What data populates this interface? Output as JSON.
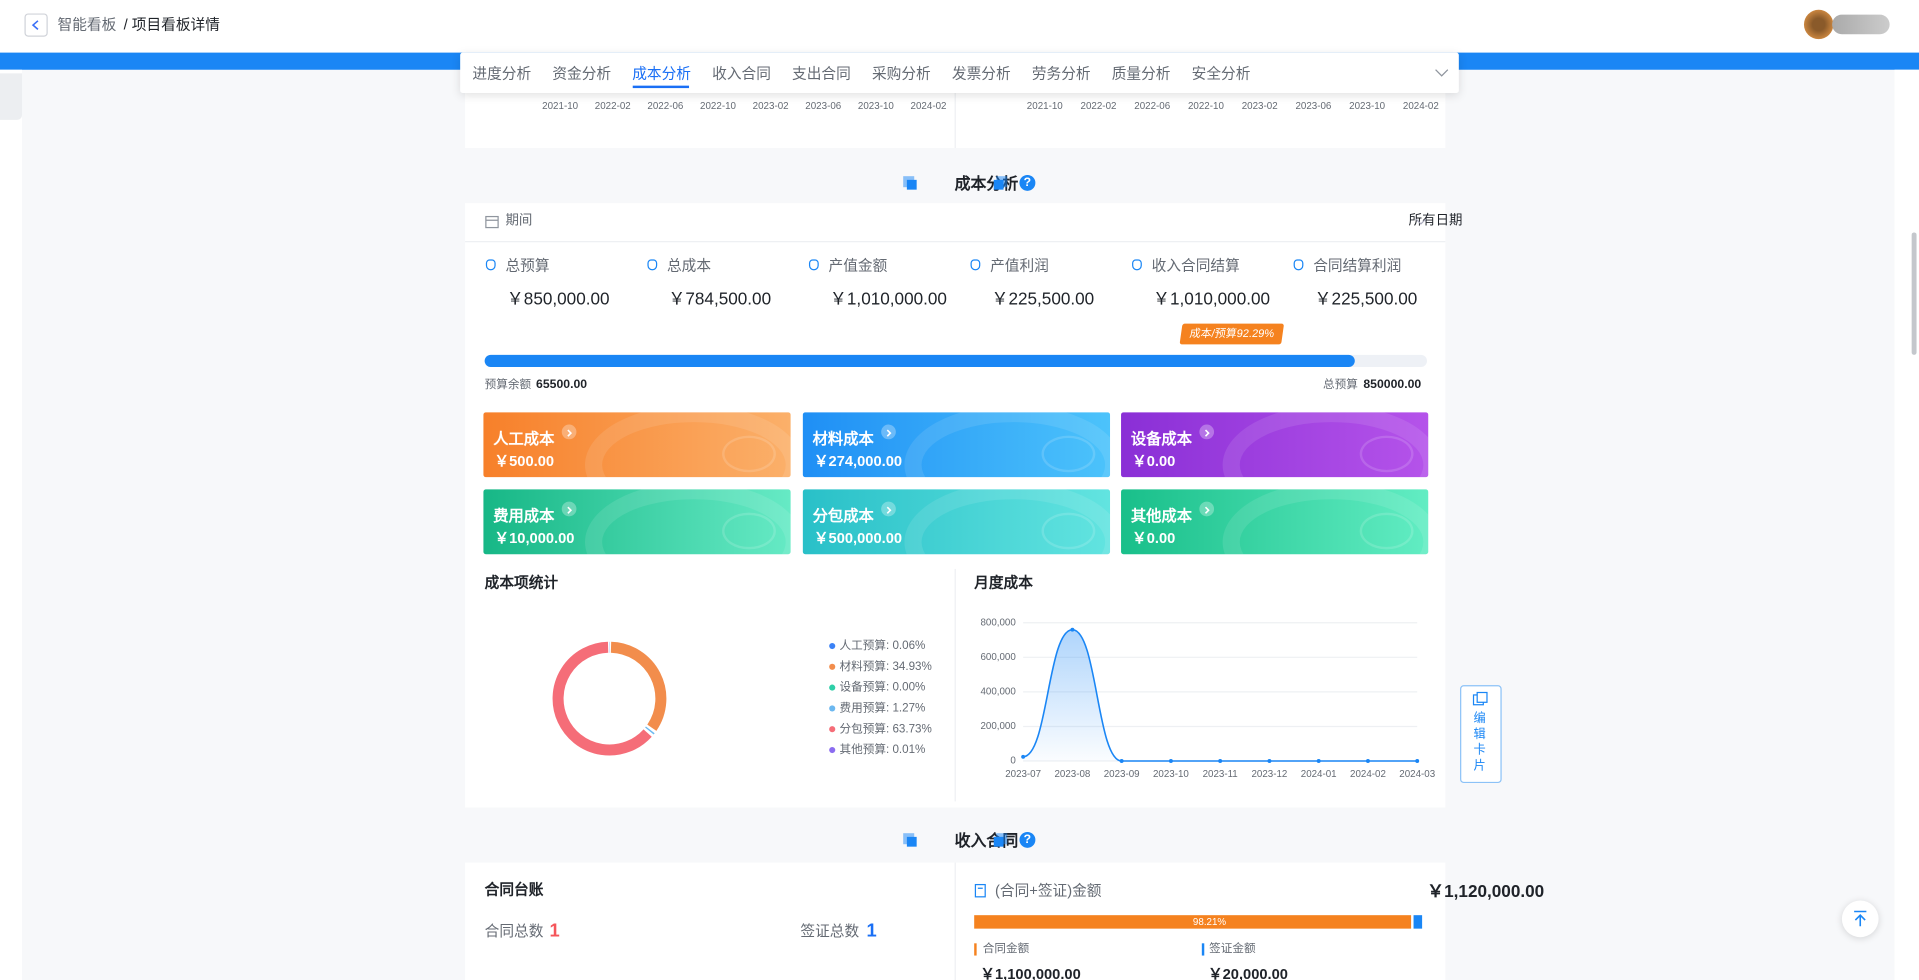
{
  "header": {
    "breadcrumb_parent": "智能看板",
    "breadcrumb_current": "/ 项目看板详情"
  },
  "tabs": {
    "items": [
      "进度分析",
      "资金分析",
      "成本分析",
      "收入合同",
      "支出合同",
      "采购分析",
      "发票分析",
      "劳务分析",
      "质量分析",
      "安全分析"
    ],
    "active": 2
  },
  "top_charts": {
    "left_xticks": [
      "2021-10",
      "2022-02",
      "2022-06",
      "2022-10",
      "2023-02",
      "2023-06",
      "2023-10",
      "2024-02"
    ],
    "right_xticks": [
      "2021-10",
      "2022-02",
      "2022-06",
      "2022-10",
      "2023-02",
      "2023-06",
      "2023-10",
      "2024-02"
    ]
  },
  "cost": {
    "title": "成本分析",
    "period_label": "期间",
    "date_filter": "所有日期",
    "kpis": [
      {
        "label": "总预算",
        "value": "￥850,000.00"
      },
      {
        "label": "总成本",
        "value": "￥784,500.00"
      },
      {
        "label": "产值金额",
        "value": "￥1,010,000.00"
      },
      {
        "label": "产值利润",
        "value": "￥225,500.00"
      },
      {
        "label": "收入合同结算",
        "value": "￥1,010,000.00"
      },
      {
        "label": "合同结算利润",
        "value": "￥225,500.00"
      }
    ],
    "progress": {
      "value": 92.29,
      "label": "成本/预算92.29%"
    },
    "remaining_label": "预算余额",
    "remaining": "65500.00",
    "total_label": "总预算",
    "total": "850000.00",
    "cards": [
      {
        "name": "人工成本",
        "value": "￥500.00",
        "colors": [
          "#f7802a",
          "#fbb06a"
        ]
      },
      {
        "name": "材料成本",
        "value": "￥274,000.00",
        "colors": [
          "#1f8ff5",
          "#4cc3fb"
        ]
      },
      {
        "name": "设备成本",
        "value": "￥0.00",
        "colors": [
          "#8a2fd6",
          "#b553ea"
        ]
      },
      {
        "name": "费用成本",
        "value": "￥10,000.00",
        "colors": [
          "#17b786",
          "#66eac5"
        ]
      },
      {
        "name": "分包成本",
        "value": "￥500,000.00",
        "colors": [
          "#29c0c8",
          "#62e4e0"
        ]
      },
      {
        "name": "其他成本",
        "value": "￥0.00",
        "colors": [
          "#19bf8a",
          "#62edc3"
        ]
      }
    ],
    "donut": {
      "title": "成本项统计",
      "items": [
        {
          "label": "人工预算: 0.06%",
          "value": 0.06,
          "color": "#3b82f6"
        },
        {
          "label": "材料预算: 34.93%",
          "value": 34.93,
          "color": "#f28d4c"
        },
        {
          "label": "设备预算: 0.00%",
          "value": 0,
          "color": "#2ecfa8"
        },
        {
          "label": "费用预算: 1.27%",
          "value": 1.27,
          "color": "#6cb8f0"
        },
        {
          "label": "分包预算: 63.73%",
          "value": 63.73,
          "color": "#f56d78"
        },
        {
          "label": "其他预算: 0.01%",
          "value": 0.01,
          "color": "#8b6cf0"
        }
      ]
    },
    "monthly": {
      "title": "月度成本",
      "categories": [
        "2023-07",
        "2023-08",
        "2023-09",
        "2023-10",
        "2023-11",
        "2023-12",
        "2024-01",
        "2024-02",
        "2024-03"
      ],
      "values": [
        24500,
        760000,
        0,
        0,
        0,
        0,
        0,
        0,
        0
      ],
      "color": "#1a86f5",
      "ylim": [
        0,
        800000
      ],
      "yticks": [
        0,
        {
          "value": 200000,
          "label": "200,000"
        },
        {
          "value": 400000,
          "label": "400,000"
        },
        {
          "value": 600000,
          "label": "600,000"
        },
        {
          "value": 800000,
          "label": "800,000"
        }
      ]
    }
  },
  "edit_button": "编辑卡片",
  "income": {
    "title": "收入合同",
    "ledger_title": "合同台账",
    "contract_count_label": "合同总数",
    "contract_count": 1,
    "visa_count_label": "签证总数",
    "visa_count": 1,
    "amount_label": "(合同+签证)金额",
    "amount": "￥1,120,000.00",
    "bar": {
      "value": 98.21,
      "label": "98.21%"
    },
    "contract_amount_label": "合同金额",
    "contract_amount": "￥1,100,000.00",
    "visa_amount_label": "签证金额",
    "visa_amount": "￥20,000.00"
  }
}
